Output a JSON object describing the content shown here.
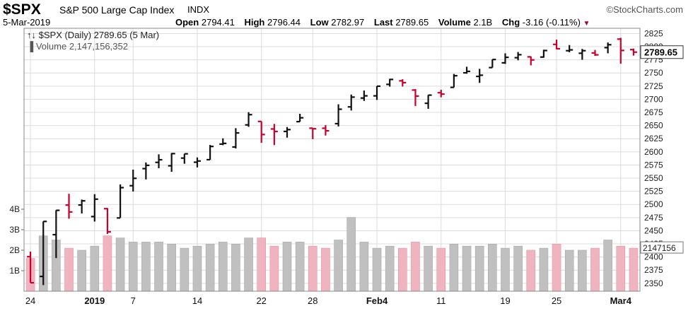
{
  "header": {
    "symbol": "$SPX",
    "description": "S&P 500 Large Cap Index",
    "exchange": "INDX",
    "brand": "©StockCharts.com",
    "date": "5-Mar-2019",
    "open_label": "Open",
    "open_value": "2794.41",
    "high_label": "High",
    "high_value": "2796.44",
    "low_label": "Low",
    "low_value": "2782.97",
    "last_label": "Last",
    "last_value": "2789.65",
    "volume_label": "Volume",
    "volume_value": "2.1B",
    "chg_label": "Chg",
    "chg_value": "-3.16 (-0.11%)"
  },
  "legend": {
    "price": "$SPX (Daily) 2789.65 (5 Mar)",
    "volume": "Volume 2,147,156,352"
  },
  "colors": {
    "up": "#111111",
    "down": "#c8002a",
    "vol_up": "#c0c0c0",
    "vol_down": "#efb4bf",
    "grid": "#dcdcdc"
  },
  "chart_data": {
    "type": "ohlc_bar_with_volume",
    "title": "$SPX (Daily) 2789.65 (5 Mar)",
    "ylim": [
      2335,
      2835
    ],
    "y_ticks": [
      2350,
      2375,
      2400,
      2425,
      2450,
      2475,
      2500,
      2525,
      2550,
      2575,
      2600,
      2625,
      2650,
      2675,
      2700,
      2725,
      2750,
      2775,
      2800,
      2825
    ],
    "volume_ticks": [
      "1B",
      "2B",
      "3B",
      "4B"
    ],
    "x_tick_labels": [
      {
        "label": "24",
        "bar": 0
      },
      {
        "label": "2019",
        "bar": 5
      },
      {
        "label": "7",
        "bar": 8
      },
      {
        "label": "14",
        "bar": 13
      },
      {
        "label": "22",
        "bar": 18
      },
      {
        "label": "28",
        "bar": 22
      },
      {
        "label": "Feb4",
        "bar": 27
      },
      {
        "label": "11",
        "bar": 32
      },
      {
        "label": "19",
        "bar": 37
      },
      {
        "label": "25",
        "bar": 41
      },
      {
        "label": "Mar4",
        "bar": 46
      }
    ],
    "last_price_label": "2789.65",
    "last_volume_label": "2147156",
    "series": [
      {
        "date": "2018-12-24",
        "open": 2400.56,
        "high": 2410.34,
        "low": 2351.1,
        "close": 2351.1,
        "volume": 1.6
      },
      {
        "date": "2018-12-26",
        "open": 2363.12,
        "high": 2467.76,
        "low": 2346.58,
        "close": 2467.7,
        "volume": 2.7
      },
      {
        "date": "2018-12-27",
        "open": 2442.5,
        "high": 2489.1,
        "low": 2397.94,
        "close": 2488.83,
        "volume": 2.5
      },
      {
        "date": "2018-12-28",
        "open": 2498.77,
        "high": 2520.27,
        "low": 2472.89,
        "close": 2485.74,
        "volume": 2.1
      },
      {
        "date": "2018-12-31",
        "open": 2498.94,
        "high": 2509.24,
        "low": 2482.82,
        "close": 2506.85,
        "volume": 2.0
      },
      {
        "date": "2019-01-02",
        "open": 2476.96,
        "high": 2519.49,
        "low": 2467.47,
        "close": 2510.03,
        "volume": 2.2
      },
      {
        "date": "2019-01-03",
        "open": 2491.92,
        "high": 2493.14,
        "low": 2443.96,
        "close": 2447.89,
        "volume": 2.7
      },
      {
        "date": "2019-01-04",
        "open": 2474.33,
        "high": 2538.07,
        "low": 2474.33,
        "close": 2531.94,
        "volume": 2.6
      },
      {
        "date": "2019-01-07",
        "open": 2535.61,
        "high": 2566.16,
        "low": 2524.56,
        "close": 2549.69,
        "volume": 2.4
      },
      {
        "date": "2019-01-08",
        "open": 2568.11,
        "high": 2579.82,
        "low": 2547.56,
        "close": 2574.41,
        "volume": 2.4
      },
      {
        "date": "2019-01-09",
        "open": 2580.0,
        "high": 2595.32,
        "low": 2568.89,
        "close": 2584.96,
        "volume": 2.4
      },
      {
        "date": "2019-01-10",
        "open": 2573.51,
        "high": 2597.82,
        "low": 2562.02,
        "close": 2596.64,
        "volume": 2.3
      },
      {
        "date": "2019-01-11",
        "open": 2588.11,
        "high": 2596.27,
        "low": 2577.4,
        "close": 2596.26,
        "volume": 2.1
      },
      {
        "date": "2019-01-14",
        "open": 2580.31,
        "high": 2589.32,
        "low": 2570.41,
        "close": 2582.61,
        "volume": 2.2
      },
      {
        "date": "2019-01-15",
        "open": 2585.1,
        "high": 2613.08,
        "low": 2585.1,
        "close": 2610.3,
        "volume": 2.3
      },
      {
        "date": "2019-01-16",
        "open": 2614.75,
        "high": 2625.76,
        "low": 2612.68,
        "close": 2616.1,
        "volume": 2.4
      },
      {
        "date": "2019-01-17",
        "open": 2609.28,
        "high": 2645.06,
        "low": 2606.36,
        "close": 2635.96,
        "volume": 2.3
      },
      {
        "date": "2019-01-18",
        "open": 2651.27,
        "high": 2675.47,
        "low": 2647.58,
        "close": 2670.71,
        "volume": 2.6
      },
      {
        "date": "2019-01-22",
        "open": 2657.88,
        "high": 2657.88,
        "low": 2617.27,
        "close": 2632.9,
        "volume": 2.6
      },
      {
        "date": "2019-01-23",
        "open": 2643.48,
        "high": 2653.19,
        "low": 2612.86,
        "close": 2638.7,
        "volume": 2.2
      },
      {
        "date": "2019-01-24",
        "open": 2638.84,
        "high": 2647.2,
        "low": 2627.01,
        "close": 2642.33,
        "volume": 2.4
      },
      {
        "date": "2019-01-25",
        "open": 2657.44,
        "high": 2672.38,
        "low": 2657.33,
        "close": 2664.76,
        "volume": 2.4
      },
      {
        "date": "2019-01-28",
        "open": 2644.97,
        "high": 2644.97,
        "low": 2624.06,
        "close": 2643.85,
        "volume": 2.2
      },
      {
        "date": "2019-01-29",
        "open": 2644.89,
        "high": 2650.93,
        "low": 2631.05,
        "close": 2640.0,
        "volume": 2.1
      },
      {
        "date": "2019-01-30",
        "open": 2653.62,
        "high": 2690.44,
        "low": 2648.34,
        "close": 2681.05,
        "volume": 2.5
      },
      {
        "date": "2019-01-31",
        "open": 2685.49,
        "high": 2708.95,
        "low": 2678.65,
        "close": 2704.1,
        "volume": 3.6
      },
      {
        "date": "2019-02-01",
        "open": 2702.32,
        "high": 2716.66,
        "low": 2696.88,
        "close": 2706.53,
        "volume": 2.4
      },
      {
        "date": "2019-02-04",
        "open": 2706.49,
        "high": 2724.99,
        "low": 2698.75,
        "close": 2724.87,
        "volume": 2.1
      },
      {
        "date": "2019-02-05",
        "open": 2728.34,
        "high": 2738.98,
        "low": 2724.03,
        "close": 2737.7,
        "volume": 2.2
      },
      {
        "date": "2019-02-06",
        "open": 2735.05,
        "high": 2738.08,
        "low": 2724.15,
        "close": 2731.61,
        "volume": 2.1
      },
      {
        "date": "2019-02-07",
        "open": 2717.53,
        "high": 2719.32,
        "low": 2687.26,
        "close": 2706.05,
        "volume": 2.4
      },
      {
        "date": "2019-02-08",
        "open": 2692.36,
        "high": 2708.07,
        "low": 2681.83,
        "close": 2707.88,
        "volume": 2.2
      },
      {
        "date": "2019-02-11",
        "open": 2712.4,
        "high": 2718.05,
        "low": 2703.79,
        "close": 2709.8,
        "volume": 2.1
      },
      {
        "date": "2019-02-12",
        "open": 2722.61,
        "high": 2748.19,
        "low": 2722.61,
        "close": 2744.73,
        "volume": 2.3
      },
      {
        "date": "2019-02-13",
        "open": 2750.3,
        "high": 2761.85,
        "low": 2748.63,
        "close": 2753.03,
        "volume": 2.2
      },
      {
        "date": "2019-02-14",
        "open": 2743.5,
        "high": 2757.9,
        "low": 2731.23,
        "close": 2745.73,
        "volume": 2.2
      },
      {
        "date": "2019-02-15",
        "open": 2760.24,
        "high": 2775.66,
        "low": 2760.24,
        "close": 2775.6,
        "volume": 2.3
      },
      {
        "date": "2019-02-19",
        "open": 2769.28,
        "high": 2787.33,
        "low": 2767.29,
        "close": 2779.76,
        "volume": 2.1
      },
      {
        "date": "2019-02-20",
        "open": 2779.05,
        "high": 2789.88,
        "low": 2774.06,
        "close": 2784.7,
        "volume": 2.2
      },
      {
        "date": "2019-02-21",
        "open": 2780.67,
        "high": 2781.58,
        "low": 2764.55,
        "close": 2774.88,
        "volume": 2.0
      },
      {
        "date": "2019-02-22",
        "open": 2780.24,
        "high": 2794.2,
        "low": 2779.11,
        "close": 2792.67,
        "volume": 2.1
      },
      {
        "date": "2019-02-25",
        "open": 2804.35,
        "high": 2813.49,
        "low": 2794.99,
        "close": 2796.11,
        "volume": 2.3
      },
      {
        "date": "2019-02-26",
        "open": 2792.36,
        "high": 2803.12,
        "low": 2789.47,
        "close": 2793.9,
        "volume": 2.0
      },
      {
        "date": "2019-02-27",
        "open": 2787.5,
        "high": 2795.76,
        "low": 2775.13,
        "close": 2792.38,
        "volume": 2.0
      },
      {
        "date": "2019-02-28",
        "open": 2788.11,
        "high": 2793.73,
        "low": 2782.51,
        "close": 2784.49,
        "volume": 2.1
      },
      {
        "date": "2019-03-01",
        "open": 2798.22,
        "high": 2808.02,
        "low": 2787.38,
        "close": 2803.69,
        "volume": 2.5
      },
      {
        "date": "2019-03-04",
        "open": 2814.37,
        "high": 2816.88,
        "low": 2767.66,
        "close": 2792.81,
        "volume": 2.2
      },
      {
        "date": "2019-03-05",
        "open": 2794.41,
        "high": 2796.44,
        "low": 2782.97,
        "close": 2789.65,
        "volume": 2.1
      }
    ]
  }
}
